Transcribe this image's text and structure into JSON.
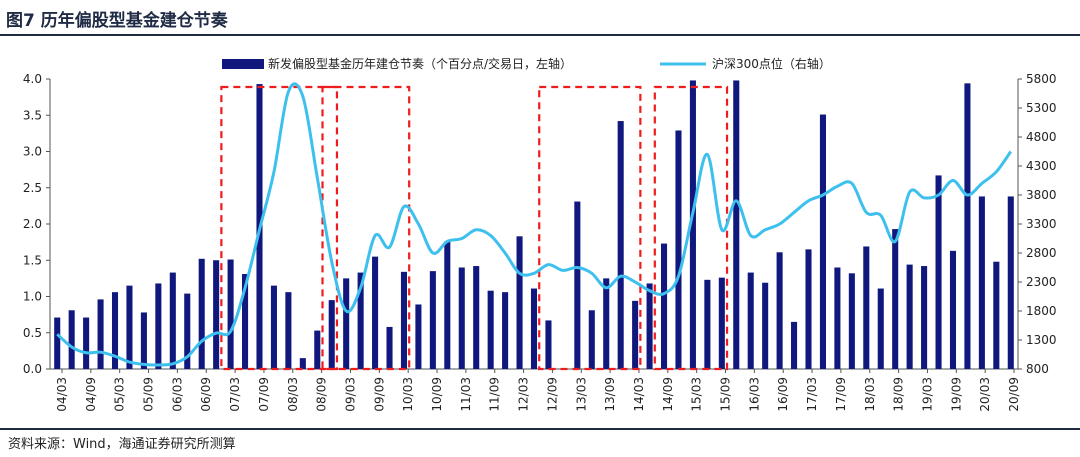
{
  "header": {
    "title": "图7  历年偏股型基金建仓节奏"
  },
  "footer": {
    "source": "资料来源：Wind，海通证券研究所测算"
  },
  "colors": {
    "bar": "#10187e",
    "line": "#3ec0ee",
    "highlight": "#ee1c1c",
    "rule": "#1f2a44"
  },
  "chart_data": {
    "type": "bar",
    "x_tick_labels": [
      "04/03",
      "04/09",
      "05/03",
      "05/09",
      "06/03",
      "06/09",
      "07/03",
      "07/09",
      "08/03",
      "08/09",
      "09/03",
      "09/09",
      "10/03",
      "10/09",
      "11/03",
      "11/09",
      "12/03",
      "12/09",
      "13/03",
      "13/09",
      "14/03",
      "14/09",
      "15/03",
      "15/09",
      "16/03",
      "16/09",
      "17/03",
      "17/09",
      "18/03",
      "18/09",
      "19/03",
      "19/09",
      "20/03",
      "20/09"
    ],
    "series": [
      {
        "name": "新发偏股型基金历年建仓节奏（个百分点/交易日，左轴）",
        "type": "bar",
        "axis": "left",
        "values": [
          0.71,
          0.81,
          0.71,
          0.96,
          1.06,
          1.15,
          0.78,
          1.18,
          1.33,
          1.04,
          1.52,
          1.5,
          1.51,
          1.31,
          3.93,
          1.15,
          1.06,
          0.15,
          0.53,
          0.95,
          1.25,
          1.33,
          1.55,
          0.58,
          1.34,
          0.89,
          1.35,
          1.76,
          1.4,
          1.42,
          1.08,
          1.06,
          1.83,
          1.11,
          0.67,
          null,
          2.31,
          0.81,
          1.25,
          3.42,
          0.94,
          1.18,
          1.73,
          3.29,
          3.98,
          1.23,
          1.26,
          3.98,
          1.33,
          1.19,
          1.61,
          0.65,
          1.65,
          3.51,
          1.4,
          1.32,
          1.69,
          1.11,
          1.93,
          1.44,
          1.42,
          2.67,
          1.63,
          3.94,
          2.38,
          1.48,
          2.38
        ]
      },
      {
        "name": "沪深300点位（右轴）",
        "type": "line",
        "axis": "right",
        "values": [
          1400,
          1180,
          1080,
          1090,
          1020,
          920,
          880,
          870,
          890,
          1010,
          1280,
          1420,
          1450,
          2200,
          3200,
          4200,
          5580,
          5500,
          4100,
          2650,
          1800,
          2200,
          3100,
          2900,
          3600,
          3300,
          2800,
          3000,
          3050,
          3200,
          3100,
          2800,
          2450,
          2450,
          2600,
          2500,
          2550,
          2450,
          2200,
          2400,
          2300,
          2150,
          2100,
          2400,
          3500,
          4500,
          3200,
          3700,
          3100,
          3200,
          3300,
          3500,
          3700,
          3800,
          3950,
          4000,
          3500,
          3450,
          3000,
          3850,
          3750,
          3800,
          4050,
          3800,
          4000,
          4200,
          4550
        ]
      }
    ],
    "y_left": {
      "min": 0.0,
      "max": 4.0,
      "ticks": [
        "0.0",
        "0.5",
        "1.0",
        "1.5",
        "2.0",
        "2.5",
        "3.0",
        "3.5",
        "4.0"
      ]
    },
    "y_right": {
      "min": 800,
      "max": 5800,
      "ticks": [
        "800",
        "1300",
        "1800",
        "2300",
        "2800",
        "3300",
        "3800",
        "4300",
        "4800",
        "5300",
        "5800"
      ]
    },
    "highlight_ranges": [
      [
        12,
        19
      ],
      [
        42,
        46
      ]
    ],
    "highlight_ranges_extra": [
      [
        19,
        24
      ],
      [
        34,
        40
      ]
    ],
    "legend_position": "top"
  }
}
